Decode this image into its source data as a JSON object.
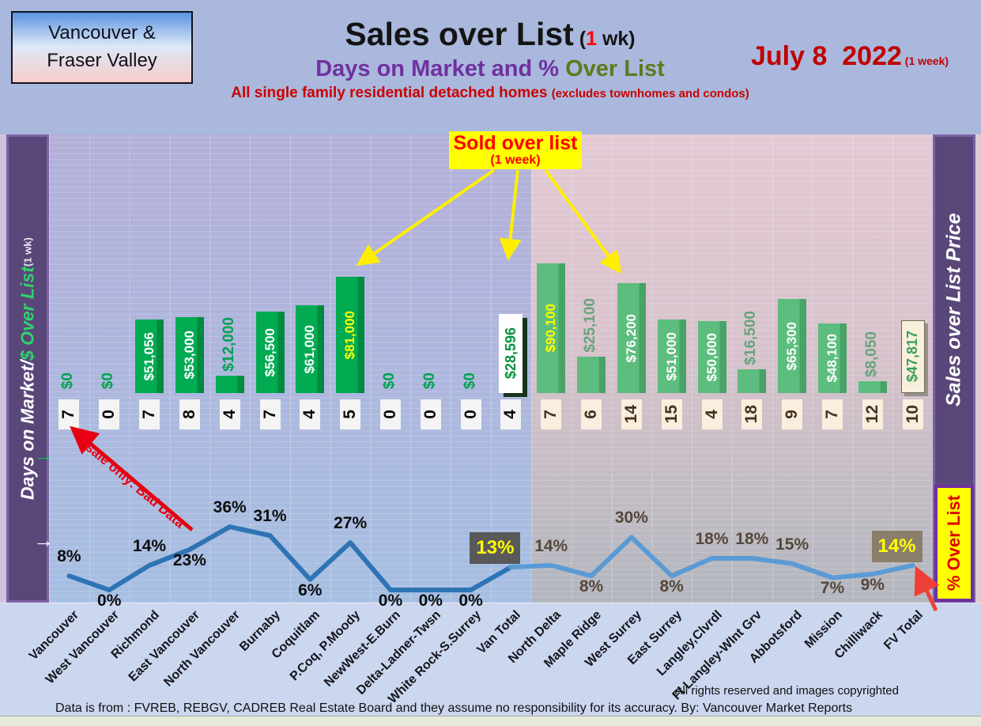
{
  "header": {
    "logo": {
      "line1": "Vancouver &",
      "line2": "Fraser Valley"
    },
    "title": {
      "main": "Sales over List",
      "paren_open": " (",
      "one": "1",
      "paren_close": " wk)"
    },
    "subtitle": {
      "purple": "Days on Market and % ",
      "green": "Over List"
    },
    "tagline": {
      "main": "All single family residential detached homes ",
      "paren": "(excludes townhomes and condos)"
    },
    "date": {
      "main": "July 8  2022",
      "paren": " (1 week)"
    }
  },
  "sidebars": {
    "left": {
      "white": "Days on Market/ ",
      "green": "$ Over List",
      "small": " (1 wk)",
      "arrow": "→"
    },
    "right": {
      "label": "Sales over List Price",
      "over_list": "% Over List"
    }
  },
  "annotations": {
    "sold_over_list": {
      "line1": "Sold over list",
      "line2": "(1 week)"
    },
    "bad_data": "1 sale only: Bad Data"
  },
  "footer": {
    "rights": "All rights reserved and  images copyrighted",
    "source": "Data is from : FVREB, REBGV, CADREB Real Estate Board and they assume no responsibility for its accuracy. By: Vancouver Market Reports"
  },
  "colors": {
    "bar_green_left": "#00ab52",
    "bar_green_right": "#5dbd7e",
    "label_green_left": "#00a14f",
    "label_green_right": "#64a47c",
    "bar_text_white": "#ffffff",
    "bar_text_yellow": "#ffff00",
    "line_left": "#2e74b5",
    "line_right": "#5b9bd5",
    "pct_text_left": "#0d0d0d",
    "pct_text_right": "#55483a",
    "van_total_box_bg": "#595959",
    "fv_total_box_bg": "#8b7e6b",
    "sidebar_purple": "#5a4779",
    "accent_purple": "#7030a0",
    "annotation_yellow": "#ffff00",
    "annotation_red": "#e60012",
    "date_red": "#c00000",
    "subtitle_purple": "#7030a0",
    "subtitle_olive": "#5e7a1e"
  },
  "chart_data": {
    "type": "bar+line combo",
    "title": "Sales over List (1 wk) — Days on Market and % Over List",
    "subtitle": "All single family residential detached homes (excludes townhomes and condos)",
    "date": "July 8 2022 (1 week)",
    "categories": [
      "Vancouver",
      "West Vancouver",
      "Richmond",
      "East Vancouver",
      "North Vancouver",
      "Burnaby",
      "Coquitlam",
      "P.Coq, P.Moody",
      "NewWest-E.Burn",
      "Delta-Ladner-Twsn",
      "White Rock-S.Surrey",
      "Van Total",
      "North Delta",
      "Maple Ridge",
      "West Surrey",
      "East Surrey",
      "Langley,Clvrdl",
      "Ft Langley-WInt Grv",
      "Abbotsford",
      "Mission",
      "Chilliwack",
      "FV Total"
    ],
    "split_index": 12,
    "grid": true,
    "bar_axis_max_value": 90100,
    "pct_axis": {
      "min": 0,
      "max": 40
    },
    "series": [
      {
        "name": "$ Over List",
        "type": "bar",
        "values": [
          0,
          0,
          51056,
          53000,
          12000,
          56500,
          61000,
          81000,
          0,
          0,
          0,
          28596,
          90100,
          25100,
          76200,
          51000,
          50000,
          16500,
          65300,
          48100,
          8050,
          47817
        ],
        "labels": [
          "$0",
          "$0",
          "$51,056",
          "$53,000",
          "$12,000",
          "$56,500",
          "$61,000",
          "$81,000",
          "$0",
          "$0",
          "$0",
          "$28,596",
          "$90,100",
          "$25,100",
          "$76,200",
          "$51,000",
          "$50,000",
          "$16,500",
          "$65,300",
          "$48,100",
          "$8,050",
          "$47,817"
        ],
        "label_styles": [
          "green-above",
          "green-above",
          "white-in",
          "white-in",
          "green-above",
          "white-in",
          "white-in",
          "yellow-in",
          "green-above",
          "green-above",
          "green-above",
          "box-white",
          "yellow-in",
          "green-above",
          "white-in",
          "white-in",
          "white-in",
          "green-above",
          "white-in",
          "white-in",
          "green-above",
          "box-cream"
        ]
      },
      {
        "name": "Days on Market",
        "type": "labels",
        "values": [
          7,
          0,
          7,
          8,
          4,
          7,
          4,
          5,
          0,
          0,
          0,
          4,
          7,
          6,
          14,
          15,
          4,
          18,
          9,
          7,
          12,
          10
        ]
      },
      {
        "name": "% Over List",
        "type": "line",
        "values": [
          8,
          0,
          14,
          23,
          36,
          31,
          6,
          27,
          0,
          0,
          0,
          13,
          14,
          8,
          30,
          8,
          18,
          18,
          15,
          7,
          9,
          14
        ],
        "labels": [
          "8%",
          "0%",
          "14%",
          "23%",
          "36%",
          "31%",
          "6%",
          "27%",
          "0%",
          "0%",
          "0%",
          "13%",
          "14%",
          "8%",
          "30%",
          "8%",
          "18%",
          "18%",
          "15%",
          "7%",
          "9%",
          "14%"
        ],
        "label_pos": [
          "above",
          "below",
          "above",
          "below",
          "above",
          "above",
          "below",
          "above",
          "below",
          "below",
          "below",
          "box",
          "above",
          "below",
          "above",
          "below",
          "above",
          "above",
          "above",
          "below",
          "below",
          "box"
        ]
      }
    ]
  }
}
